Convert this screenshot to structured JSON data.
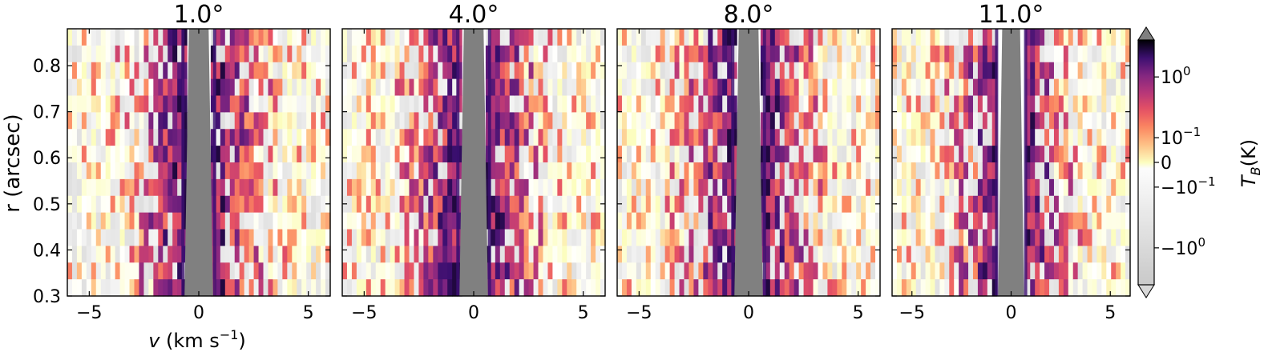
{
  "chart_data": {
    "type": "heatmap",
    "panels": [
      {
        "title": "1.0°"
      },
      {
        "title": "4.0°"
      },
      {
        "title": "8.0°"
      },
      {
        "title": "11.0°"
      }
    ],
    "xlabel_italic": "v",
    "xlabel_rest": " (km s",
    "xlabel_sup": "−1",
    "xlabel_close": ")",
    "ylabel": "r (arcsec)",
    "xlim": [
      -6,
      6
    ],
    "ylim": [
      0.3,
      0.88
    ],
    "x_ticks": [
      {
        "value": -5,
        "label": "−5"
      },
      {
        "value": 0,
        "label": "0"
      },
      {
        "value": 5,
        "label": "5"
      }
    ],
    "y_ticks": [
      {
        "value": 0.3,
        "label": "0.3"
      },
      {
        "value": 0.4,
        "label": "0.4"
      },
      {
        "value": 0.5,
        "label": "0.5"
      },
      {
        "value": 0.6,
        "label": "0.6"
      },
      {
        "value": 0.7,
        "label": "0.7"
      },
      {
        "value": 0.8,
        "label": "0.8"
      }
    ],
    "masked_velocity_half_width": 0.65,
    "masked_color": "#808080",
    "colorbar": {
      "label_main": "T",
      "label_sub": "B",
      "label_unit": "(K)",
      "scale": "symlog",
      "range": [
        -3,
        3
      ],
      "extend": "both",
      "ticks": [
        {
          "value": 1,
          "base": "10",
          "sup": "0"
        },
        {
          "value": 0.1,
          "base": "10",
          "sup": "−1"
        },
        {
          "value": 0,
          "base": "0",
          "sup": ""
        },
        {
          "value": -0.1,
          "base": "−10",
          "sup": "−1"
        },
        {
          "value": -1,
          "base": "−10",
          "sup": "0"
        }
      ],
      "colors": {
        "over": "#808080",
        "under": "#d8d8d8",
        "zero": "#ffffff",
        "negative_far": "#c9c9c9",
        "positive_stops": [
          "#fcfdbf",
          "#fec287",
          "#fb8861",
          "#e65164",
          "#b63679",
          "#822681",
          "#3b0f70",
          "#000004"
        ]
      }
    },
    "grid": false
  }
}
